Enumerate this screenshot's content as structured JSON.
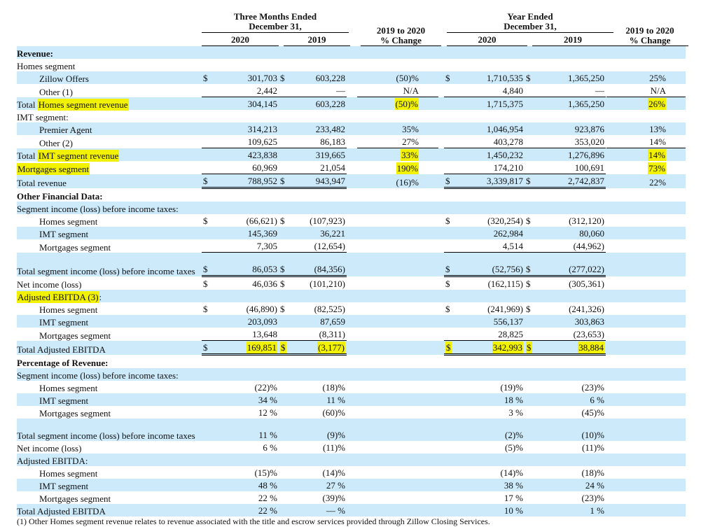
{
  "header": {
    "three_months": "Three Months Ended",
    "year_ended": "Year Ended",
    "dec31": "December 31,",
    "y2020": "2020",
    "y2019": "2019",
    "change_line1": "2019 to 2020",
    "change_line2": "% Change"
  },
  "highlight_color": "#f2f200",
  "stripe_color": "#cdeafb",
  "rows": [
    {
      "label": "Revenue:",
      "bold": true,
      "indent": 0,
      "dollar": false,
      "cells": [
        "",
        "",
        "",
        "",
        "",
        ""
      ]
    },
    {
      "label": "Homes segment",
      "indent": 0,
      "dollar": false,
      "cells": [
        "",
        "",
        "",
        "",
        "",
        ""
      ]
    },
    {
      "label": "Zillow Offers",
      "indent": 1,
      "dollar": true,
      "cells": [
        "301,703",
        "603,228",
        "(50)%",
        "1,710,535",
        "1,365,250",
        "25%"
      ]
    },
    {
      "label": "Other (1)",
      "indent": 1,
      "dollar": false,
      "cells": [
        "2,442",
        "—",
        "N/A",
        "4,840",
        "—",
        "N/A"
      ]
    },
    {
      "label_prefix": "Total ",
      "label": "Homes segment revenue",
      "indent": 0,
      "dollar": false,
      "cells": [
        "304,145",
        "603,228",
        "(50)%",
        "1,715,375",
        "1,365,250",
        "26%"
      ]
    },
    {
      "label": "IMT segment:",
      "indent": 0,
      "dollar": false,
      "cells": [
        "",
        "",
        "",
        "",
        "",
        ""
      ]
    },
    {
      "label": "Premier Agent",
      "indent": 1,
      "dollar": false,
      "cells": [
        "314,213",
        "233,482",
        "35%",
        "1,046,954",
        "923,876",
        "13%"
      ]
    },
    {
      "label": "Other (2)",
      "indent": 1,
      "dollar": false,
      "cells": [
        "109,625",
        "86,183",
        "27%",
        "403,278",
        "353,020",
        "14%"
      ]
    },
    {
      "label_prefix": "Total ",
      "label": "IMT segment revenue",
      "indent": 0,
      "dollar": false,
      "cells": [
        "423,838",
        "319,665",
        "33%",
        "1,450,232",
        "1,276,896",
        "14%"
      ]
    },
    {
      "label": "Mortgages segment",
      "indent": 0,
      "dollar": false,
      "cells": [
        "60,969",
        "21,054",
        "190%",
        "174,210",
        "100,691",
        "73%"
      ]
    },
    {
      "label": "Total revenue",
      "indent": 0,
      "dollar": true,
      "cells": [
        "788,952",
        "943,947",
        "(16)%",
        "3,339,817",
        "2,742,837",
        "22%"
      ]
    },
    {
      "label": "Other Financial Data:",
      "bold": true,
      "indent": 0,
      "dollar": false,
      "cells": [
        "",
        "",
        "",
        "",
        "",
        ""
      ]
    },
    {
      "label": "Segment income (loss) before income taxes:",
      "indent": 0,
      "dollar": false,
      "cells": [
        "",
        "",
        "",
        "",
        "",
        ""
      ]
    },
    {
      "label": "Homes segment",
      "indent": 1,
      "dollar": true,
      "cells": [
        "(66,621)",
        "(107,923)",
        "",
        "(320,254)",
        "(312,120)",
        ""
      ]
    },
    {
      "label": "IMT segment",
      "indent": 1,
      "dollar": false,
      "cells": [
        "145,369",
        "36,221",
        "",
        "262,984",
        "80,060",
        ""
      ]
    },
    {
      "label": "Mortgages segment",
      "indent": 1,
      "dollar": false,
      "cells": [
        "7,305",
        "(12,654)",
        "",
        "4,514",
        "(44,962)",
        ""
      ]
    },
    {
      "label": "Total segment income (loss) before income taxes",
      "indent": 0,
      "dollar": true,
      "cells": [
        "86,053",
        "(84,356)",
        "",
        "(52,756)",
        "(277,022)",
        ""
      ]
    },
    {
      "label": "Net income (loss)",
      "indent": 0,
      "dollar": true,
      "cells": [
        "46,036",
        "(101,210)",
        "",
        "(162,115)",
        "(305,361)",
        ""
      ]
    },
    {
      "label": "Adjusted EBITDA (3)",
      "label_suffix": ":",
      "indent": 0,
      "dollar": false,
      "cells": [
        "",
        "",
        "",
        "",
        "",
        ""
      ]
    },
    {
      "label": "Homes segment",
      "indent": 1,
      "dollar": true,
      "cells": [
        "(46,890)",
        "(82,525)",
        "",
        "(241,969)",
        "(241,326)",
        ""
      ]
    },
    {
      "label": "IMT segment",
      "indent": 1,
      "dollar": false,
      "cells": [
        "203,093",
        "87,659",
        "",
        "556,137",
        "303,863",
        ""
      ]
    },
    {
      "label": "Mortgages segment",
      "indent": 1,
      "dollar": false,
      "cells": [
        "13,648",
        "(8,311)",
        "",
        "28,825",
        "(23,653)",
        ""
      ]
    },
    {
      "label": "Total Adjusted EBITDA",
      "indent": 0,
      "dollar": true,
      "cells": [
        "169,851",
        "(3,177)",
        "",
        "342,993",
        "38,884",
        ""
      ]
    },
    {
      "label": "Percentage of Revenue:",
      "bold": true,
      "indent": 0,
      "dollar": false,
      "cells": [
        "",
        "",
        "",
        "",
        "",
        ""
      ]
    },
    {
      "label": "Segment income (loss) before income taxes:",
      "indent": 0,
      "dollar": false,
      "cells": [
        "",
        "",
        "",
        "",
        "",
        ""
      ]
    },
    {
      "label": "Homes segment",
      "indent": 1,
      "dollar": false,
      "cells": [
        "(22)%",
        "(18)%",
        "",
        "(19)%",
        "(23)%",
        ""
      ]
    },
    {
      "label": "IMT segment",
      "indent": 1,
      "dollar": false,
      "cells": [
        "34 %",
        "11 %",
        "",
        "18 %",
        "6 %",
        ""
      ]
    },
    {
      "label": "Mortgages segment",
      "indent": 1,
      "dollar": false,
      "cells": [
        "12 %",
        "(60)%",
        "",
        "3 %",
        "(45)%",
        ""
      ]
    },
    {
      "label": "Total segment income (loss) before income taxes",
      "indent": 0,
      "dollar": false,
      "cells": [
        "11 %",
        "(9)%",
        "",
        "(2)%",
        "(10)%",
        ""
      ]
    },
    {
      "label": "Net income (loss)",
      "indent": 0,
      "dollar": false,
      "cells": [
        "6 %",
        "(11)%",
        "",
        "(5)%",
        "(11)%",
        ""
      ]
    },
    {
      "label": "Adjusted EBITDA:",
      "indent": 0,
      "dollar": false,
      "cells": [
        "",
        "",
        "",
        "",
        "",
        ""
      ]
    },
    {
      "label": "Homes segment",
      "indent": 1,
      "dollar": false,
      "cells": [
        "(15)%",
        "(14)%",
        "",
        "(14)%",
        "(18)%",
        ""
      ]
    },
    {
      "label": "IMT segment",
      "indent": 1,
      "dollar": false,
      "cells": [
        "48 %",
        "27 %",
        "",
        "38 %",
        "24 %",
        ""
      ]
    },
    {
      "label": "Mortgages segment",
      "indent": 1,
      "dollar": false,
      "cells": [
        "22 %",
        "(39)%",
        "",
        "17 %",
        "(23)%",
        ""
      ]
    },
    {
      "label": "Total Adjusted EBITDA",
      "indent": 0,
      "dollar": false,
      "cells": [
        "22 %",
        "— %",
        "",
        "10 %",
        "1 %",
        ""
      ]
    }
  ],
  "footnote": "(1) Other Homes segment revenue relates to revenue associated with the title and escrow services provided through Zillow Closing Services."
}
